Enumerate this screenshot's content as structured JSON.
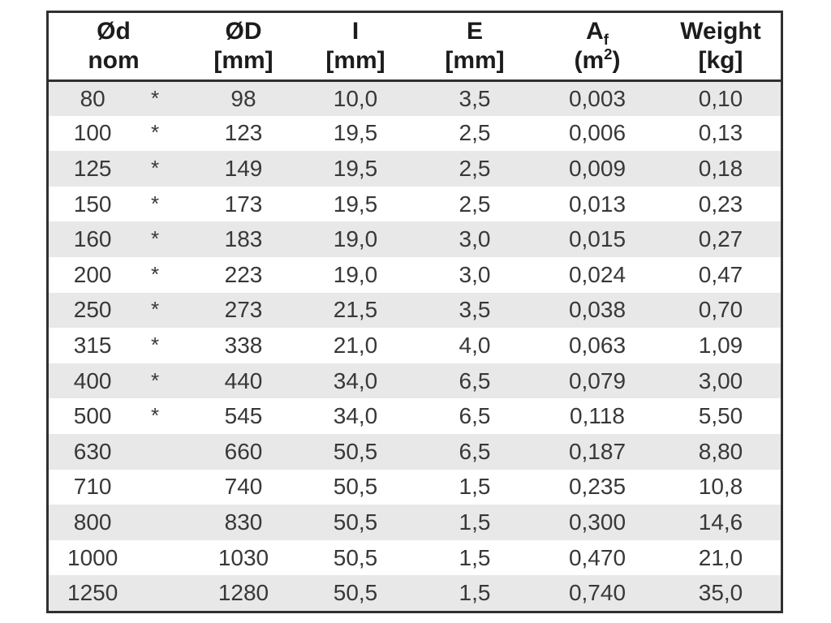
{
  "table": {
    "headers": [
      {
        "line1": "Ød",
        "line2": "nom"
      },
      {
        "line1": "ØD",
        "line2": "[mm]"
      },
      {
        "line1": "I",
        "line2": "[mm]"
      },
      {
        "line1": "E",
        "line2": "[mm]"
      },
      {
        "symbol": "A",
        "symbol_sub": "f",
        "unit_pre": "(m",
        "unit_sup": "2",
        "unit_post": ")"
      },
      {
        "line1": "Weight",
        "line2": "[kg]"
      }
    ],
    "star_marker": "*",
    "rows": [
      {
        "od_nom": "80",
        "starred": true,
        "outer_d": "98",
        "i": "10,0",
        "e": "3,5",
        "af": "0,003",
        "weight": "0,10"
      },
      {
        "od_nom": "100",
        "starred": true,
        "outer_d": "123",
        "i": "19,5",
        "e": "2,5",
        "af": "0,006",
        "weight": "0,13"
      },
      {
        "od_nom": "125",
        "starred": true,
        "outer_d": "149",
        "i": "19,5",
        "e": "2,5",
        "af": "0,009",
        "weight": "0,18"
      },
      {
        "od_nom": "150",
        "starred": true,
        "outer_d": "173",
        "i": "19,5",
        "e": "2,5",
        "af": "0,013",
        "weight": "0,23"
      },
      {
        "od_nom": "160",
        "starred": true,
        "outer_d": "183",
        "i": "19,0",
        "e": "3,0",
        "af": "0,015",
        "weight": "0,27"
      },
      {
        "od_nom": "200",
        "starred": true,
        "outer_d": "223",
        "i": "19,0",
        "e": "3,0",
        "af": "0,024",
        "weight": "0,47"
      },
      {
        "od_nom": "250",
        "starred": true,
        "outer_d": "273",
        "i": "21,5",
        "e": "3,5",
        "af": "0,038",
        "weight": "0,70"
      },
      {
        "od_nom": "315",
        "starred": true,
        "outer_d": "338",
        "i": "21,0",
        "e": "4,0",
        "af": "0,063",
        "weight": "1,09"
      },
      {
        "od_nom": "400",
        "starred": true,
        "outer_d": "440",
        "i": "34,0",
        "e": "6,5",
        "af": "0,079",
        "weight": "3,00"
      },
      {
        "od_nom": "500",
        "starred": true,
        "outer_d": "545",
        "i": "34,0",
        "e": "6,5",
        "af": "0,118",
        "weight": "5,50"
      },
      {
        "od_nom": "630",
        "starred": false,
        "outer_d": "660",
        "i": "50,5",
        "e": "6,5",
        "af": "0,187",
        "weight": "8,80"
      },
      {
        "od_nom": "710",
        "starred": false,
        "outer_d": "740",
        "i": "50,5",
        "e": "1,5",
        "af": "0,235",
        "weight": "10,8"
      },
      {
        "od_nom": "800",
        "starred": false,
        "outer_d": "830",
        "i": "50,5",
        "e": "1,5",
        "af": "0,300",
        "weight": "14,6"
      },
      {
        "od_nom": "1000",
        "starred": false,
        "outer_d": "1030",
        "i": "50,5",
        "e": "1,5",
        "af": "0,470",
        "weight": "21,0"
      },
      {
        "od_nom": "1250",
        "starred": false,
        "outer_d": "1280",
        "i": "50,5",
        "e": "1,5",
        "af": "0,740",
        "weight": "35,0"
      }
    ]
  },
  "colors": {
    "stripe": "#e8e8e8",
    "border": "#303030",
    "text": "#383838",
    "header_text": "#1c1c1c"
  }
}
